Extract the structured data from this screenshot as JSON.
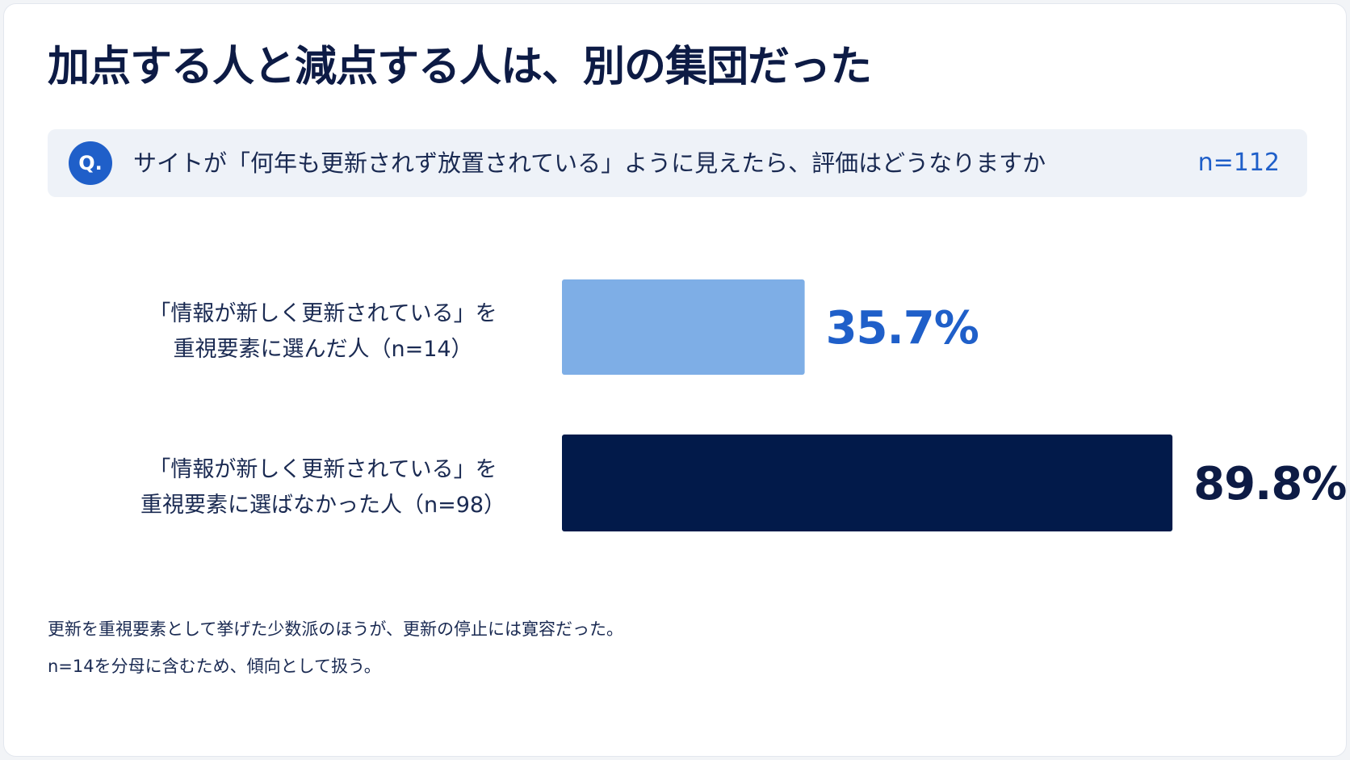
{
  "title": "加点する人と減点する人は、別の集団だった",
  "question": {
    "badge": "Q.",
    "text": "サイトが「何年も更新されず放置されている」ように見えたら、評価はどうなりますか",
    "n": "n=112"
  },
  "chart_data": {
    "type": "bar",
    "orientation": "horizontal",
    "categories": [
      [
        "「情報が新しく更新されている」を",
        "重視要素に選んだ人（n=14）"
      ],
      [
        "「情報が新しく更新されている」を",
        "重視要素に選ばなかった人（n=98）"
      ]
    ],
    "values": [
      35.7,
      89.8
    ],
    "value_labels": [
      "35.7%",
      "89.8%"
    ],
    "colors": [
      "#7eaee6",
      "#021a4a"
    ],
    "label_colors": [
      "#1f5fc9",
      "#0d1b45"
    ],
    "xlim": [
      0,
      100
    ],
    "grid": false
  },
  "footnotes": [
    "更新を重視要素として挙げた少数派のほうが、更新の停止には寛容だった。",
    "n=14を分母に含むため、傾向として扱う。"
  ]
}
